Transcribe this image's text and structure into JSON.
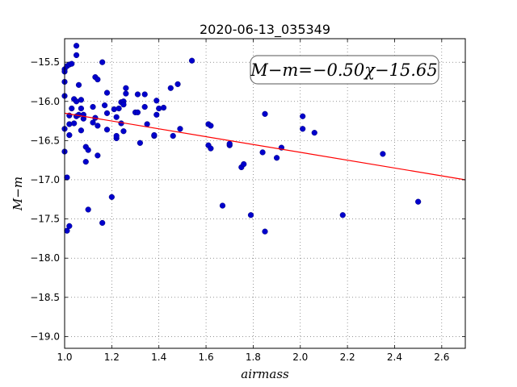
{
  "chart_data": {
    "type": "scatter",
    "title": "2020-06-13_035349",
    "xlabel": "airmass",
    "ylabel": "M−m",
    "xlim": [
      1.0,
      2.7
    ],
    "ylim": [
      -19.15,
      -15.2
    ],
    "y_inverted": true,
    "grid": true,
    "x_ticks": [
      1.0,
      1.2,
      1.4,
      1.6,
      1.8,
      2.0,
      2.2,
      2.4,
      2.6
    ],
    "x_tick_labels": [
      "1.0",
      "1.2",
      "1.4",
      "1.6",
      "1.8",
      "2.0",
      "2.2",
      "2.4",
      "2.6"
    ],
    "y_ticks": [
      -15.5,
      -16.0,
      -16.5,
      -17.0,
      -17.5,
      -18.0,
      -18.5,
      -19.0
    ],
    "y_tick_labels": [
      "−15.5",
      "−16.0",
      "−16.5",
      "−17.0",
      "−17.5",
      "−18.0",
      "−18.5",
      "−19.0"
    ],
    "annotation": "M−m=−0.50χ−15.65",
    "series": [
      {
        "type": "scatter",
        "color": "#0000cc",
        "points": [
          [
            1.0,
            -15.59
          ],
          [
            1.0,
            -15.62
          ],
          [
            1.0,
            -15.75
          ],
          [
            1.0,
            -15.93
          ],
          [
            1.0,
            -16.35
          ],
          [
            1.0,
            -16.64
          ],
          [
            1.01,
            -15.55
          ],
          [
            1.01,
            -16.97
          ],
          [
            1.01,
            -17.65
          ],
          [
            1.02,
            -15.53
          ],
          [
            1.02,
            -16.43
          ],
          [
            1.02,
            -16.29
          ],
          [
            1.02,
            -17.59
          ],
          [
            1.02,
            -16.18
          ],
          [
            1.03,
            -16.09
          ],
          [
            1.03,
            -15.52
          ],
          [
            1.04,
            -15.97
          ],
          [
            1.04,
            -16.28
          ],
          [
            1.05,
            -15.29
          ],
          [
            1.05,
            -15.41
          ],
          [
            1.05,
            -16.19
          ],
          [
            1.05,
            -16.0
          ],
          [
            1.06,
            -16.17
          ],
          [
            1.06,
            -15.79
          ],
          [
            1.07,
            -16.37
          ],
          [
            1.07,
            -16.09
          ],
          [
            1.07,
            -15.98
          ],
          [
            1.08,
            -16.22
          ],
          [
            1.08,
            -16.17
          ],
          [
            1.09,
            -16.58
          ],
          [
            1.09,
            -16.77
          ],
          [
            1.1,
            -16.62
          ],
          [
            1.1,
            -17.38
          ],
          [
            1.12,
            -16.07
          ],
          [
            1.12,
            -16.27
          ],
          [
            1.13,
            -16.21
          ],
          [
            1.13,
            -15.69
          ],
          [
            1.14,
            -16.31
          ],
          [
            1.14,
            -16.69
          ],
          [
            1.14,
            -15.72
          ],
          [
            1.16,
            -15.5
          ],
          [
            1.16,
            -17.55
          ],
          [
            1.17,
            -16.05
          ],
          [
            1.18,
            -15.89
          ],
          [
            1.18,
            -16.15
          ],
          [
            1.18,
            -16.36
          ],
          [
            1.2,
            -17.22
          ],
          [
            1.21,
            -16.1
          ],
          [
            1.22,
            -16.2
          ],
          [
            1.22,
            -16.47
          ],
          [
            1.22,
            -16.44
          ],
          [
            1.23,
            -16.09
          ],
          [
            1.24,
            -16.01
          ],
          [
            1.24,
            -16.28
          ],
          [
            1.25,
            -16.0
          ],
          [
            1.25,
            -16.04
          ],
          [
            1.25,
            -16.38
          ],
          [
            1.26,
            -15.9
          ],
          [
            1.26,
            -15.83
          ],
          [
            1.3,
            -16.14
          ],
          [
            1.31,
            -15.91
          ],
          [
            1.31,
            -16.14
          ],
          [
            1.32,
            -16.53
          ],
          [
            1.34,
            -15.91
          ],
          [
            1.34,
            -16.07
          ],
          [
            1.35,
            -16.29
          ],
          [
            1.38,
            -16.44
          ],
          [
            1.38,
            -16.43
          ],
          [
            1.39,
            -16.17
          ],
          [
            1.39,
            -15.99
          ],
          [
            1.4,
            -16.09
          ],
          [
            1.42,
            -16.08
          ],
          [
            1.45,
            -15.83
          ],
          [
            1.46,
            -16.44
          ],
          [
            1.48,
            -15.78
          ],
          [
            1.49,
            -16.35
          ],
          [
            1.54,
            -15.48
          ],
          [
            1.61,
            -16.29
          ],
          [
            1.61,
            -16.56
          ],
          [
            1.62,
            -16.31
          ],
          [
            1.62,
            -16.6
          ],
          [
            1.67,
            -17.33
          ],
          [
            1.7,
            -16.56
          ],
          [
            1.7,
            -16.54
          ],
          [
            1.75,
            -16.84
          ],
          [
            1.76,
            -16.8
          ],
          [
            1.79,
            -17.45
          ],
          [
            1.84,
            -16.65
          ],
          [
            1.85,
            -16.16
          ],
          [
            1.85,
            -17.66
          ],
          [
            1.9,
            -16.72
          ],
          [
            1.92,
            -16.59
          ],
          [
            2.01,
            -16.35
          ],
          [
            2.01,
            -16.19
          ],
          [
            2.06,
            -16.4
          ],
          [
            2.18,
            -17.45
          ],
          [
            2.35,
            -16.67
          ],
          [
            2.5,
            -17.28
          ]
        ]
      },
      {
        "type": "line",
        "color": "#ff0000",
        "x": [
          1.0,
          2.7
        ],
        "y": [
          -16.15,
          -17.0
        ]
      }
    ]
  }
}
